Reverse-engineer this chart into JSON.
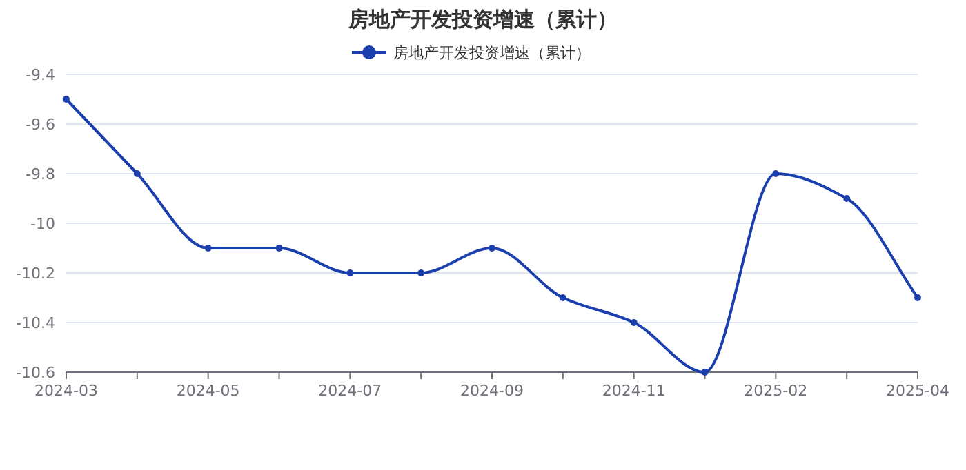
{
  "chart_data": {
    "type": "line",
    "title": "房地产开发投资增速（累计）",
    "categories": [
      "2024-03",
      null,
      "2024-05",
      null,
      "2024-07",
      null,
      "2024-09",
      null,
      "2024-11",
      null,
      "2025-02",
      null,
      "2025-04"
    ],
    "series": [
      {
        "name": "房地产开发投资增速（累计）",
        "color": "#1c3fae",
        "values": [
          -9.5,
          -9.8,
          -10.1,
          -10.1,
          -10.2,
          -10.2,
          -10.1,
          -10.3,
          -10.4,
          -10.6,
          -9.8,
          -9.9,
          -10.3
        ]
      }
    ],
    "ylim": [
      -10.6,
      -9.4
    ],
    "yticks": [
      -10.6,
      -10.4,
      -10.2,
      -10,
      -9.8,
      -9.6,
      -9.4
    ],
    "grid": "y",
    "legend": "top",
    "marker": "circle",
    "line_style": "solid"
  }
}
